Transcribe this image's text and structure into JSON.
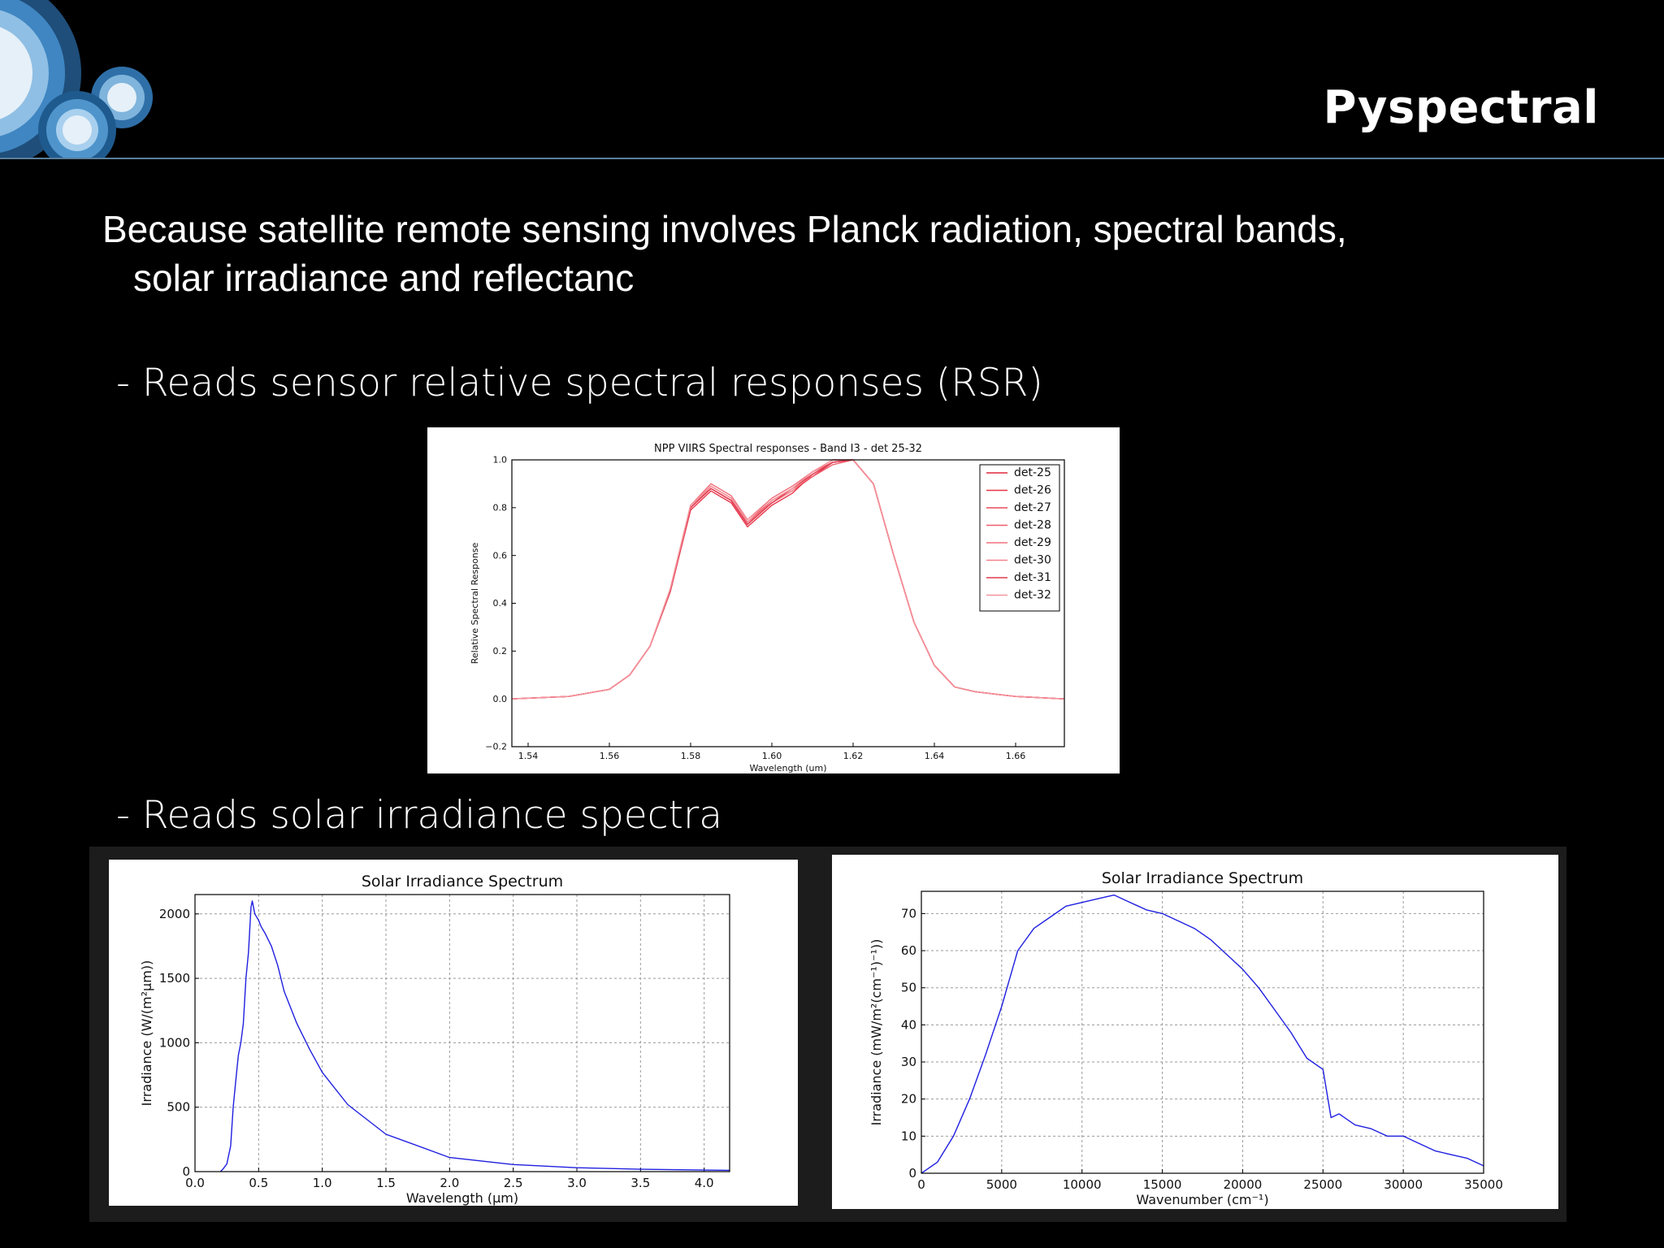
{
  "slide": {
    "title": "Pyspectral",
    "intro_line1": "Because satellite remote sensing involves Planck radiation, spectral bands,",
    "intro_line2": "solar irradiance and reflectanc",
    "bullets": [
      "- Reads sensor relative spectral responses (RSR)",
      "- Reads solar irradiance spectra"
    ],
    "decoration": "concentric-circles-logo",
    "colors": {
      "background": "#000000",
      "text": "#ffffff",
      "divider": "#5a7f9c",
      "circles": "#3f86c2"
    }
  },
  "chart_data": [
    {
      "type": "line",
      "title": "NPP VIIRS Spectral responses - Band I3 - det 25-32",
      "xlabel": "Wavelength (um)",
      "ylabel": "Relative Spectral Response",
      "xlim": [
        1.536,
        1.672
      ],
      "ylim": [
        -0.2,
        1.0
      ],
      "xticks": [
        "1.54",
        "1.56",
        "1.58",
        "1.60",
        "1.62",
        "1.64",
        "1.66"
      ],
      "yticks": [
        "−0.2",
        "0.0",
        "0.2",
        "0.4",
        "0.6",
        "0.8",
        "1.0"
      ],
      "grid": false,
      "legend": "top-right",
      "x": [
        1.536,
        1.55,
        1.56,
        1.565,
        1.57,
        1.575,
        1.58,
        1.585,
        1.59,
        1.594,
        1.6,
        1.605,
        1.61,
        1.615,
        1.62,
        1.625,
        1.63,
        1.635,
        1.64,
        1.645,
        1.65,
        1.655,
        1.66,
        1.672
      ],
      "series": [
        {
          "name": "det-25",
          "color": "#e0263c",
          "values": [
            0.0,
            0.01,
            0.04,
            0.1,
            0.22,
            0.45,
            0.8,
            0.88,
            0.83,
            0.73,
            0.82,
            0.87,
            0.93,
            0.99,
            1.0,
            0.9,
            0.6,
            0.32,
            0.14,
            0.05,
            0.03,
            0.02,
            0.01,
            0.0
          ]
        },
        {
          "name": "det-26",
          "color": "#e83447",
          "values": [
            0.0,
            0.01,
            0.04,
            0.1,
            0.22,
            0.45,
            0.79,
            0.87,
            0.82,
            0.72,
            0.81,
            0.86,
            0.94,
            0.99,
            1.0,
            0.9,
            0.6,
            0.32,
            0.14,
            0.05,
            0.03,
            0.02,
            0.01,
            0.0
          ]
        },
        {
          "name": "det-27",
          "color": "#ea4a5a",
          "values": [
            0.0,
            0.01,
            0.04,
            0.1,
            0.22,
            0.46,
            0.81,
            0.89,
            0.84,
            0.74,
            0.83,
            0.88,
            0.95,
            1.0,
            1.0,
            0.9,
            0.6,
            0.32,
            0.14,
            0.05,
            0.03,
            0.02,
            0.01,
            0.0
          ]
        },
        {
          "name": "det-28",
          "color": "#ee5e6c",
          "values": [
            0.0,
            0.01,
            0.04,
            0.1,
            0.22,
            0.45,
            0.8,
            0.88,
            0.83,
            0.73,
            0.83,
            0.88,
            0.93,
            0.98,
            1.0,
            0.9,
            0.6,
            0.32,
            0.14,
            0.05,
            0.03,
            0.02,
            0.01,
            0.0
          ]
        },
        {
          "name": "det-29",
          "color": "#f0707c",
          "values": [
            0.0,
            0.01,
            0.04,
            0.1,
            0.22,
            0.46,
            0.81,
            0.9,
            0.85,
            0.75,
            0.84,
            0.89,
            0.95,
            0.99,
            1.0,
            0.9,
            0.6,
            0.32,
            0.14,
            0.05,
            0.03,
            0.02,
            0.01,
            0.0
          ]
        },
        {
          "name": "det-30",
          "color": "#f2828c",
          "values": [
            0.0,
            0.01,
            0.04,
            0.1,
            0.22,
            0.45,
            0.8,
            0.89,
            0.84,
            0.74,
            0.82,
            0.87,
            0.94,
            0.99,
            1.0,
            0.9,
            0.6,
            0.32,
            0.14,
            0.05,
            0.03,
            0.02,
            0.01,
            0.0
          ]
        },
        {
          "name": "det-31",
          "color": "#e03a50",
          "values": [
            0.0,
            0.01,
            0.04,
            0.1,
            0.22,
            0.45,
            0.8,
            0.88,
            0.83,
            0.73,
            0.82,
            0.88,
            0.94,
            0.99,
            1.0,
            0.9,
            0.6,
            0.32,
            0.14,
            0.05,
            0.03,
            0.02,
            0.01,
            0.0
          ]
        },
        {
          "name": "det-32",
          "color": "#f4949c",
          "values": [
            0.0,
            0.01,
            0.04,
            0.1,
            0.22,
            0.46,
            0.81,
            0.89,
            0.84,
            0.75,
            0.83,
            0.88,
            0.95,
            1.0,
            1.0,
            0.9,
            0.6,
            0.32,
            0.14,
            0.05,
            0.03,
            0.02,
            0.01,
            0.0
          ]
        }
      ]
    },
    {
      "type": "line",
      "title": "Solar Irradiance Spectrum",
      "xlabel": "Wavelength (μm)",
      "ylabel": "Irradiance (W/(m²μm))",
      "xlim": [
        0.0,
        4.2
      ],
      "ylim": [
        0,
        2150
      ],
      "xticks": [
        "0.0",
        "0.5",
        "1.0",
        "1.5",
        "2.0",
        "2.5",
        "3.0",
        "3.5",
        "4.0"
      ],
      "yticks": [
        "0",
        "500",
        "1000",
        "1500",
        "2000"
      ],
      "grid": true,
      "color": "#1f1fe0",
      "x": [
        0.2,
        0.22,
        0.25,
        0.28,
        0.3,
        0.32,
        0.34,
        0.36,
        0.38,
        0.4,
        0.42,
        0.44,
        0.45,
        0.47,
        0.5,
        0.52,
        0.55,
        0.6,
        0.65,
        0.7,
        0.8,
        0.9,
        1.0,
        1.2,
        1.5,
        2.0,
        2.5,
        3.0,
        3.5,
        4.0,
        4.2
      ],
      "values": [
        0,
        20,
        60,
        200,
        500,
        700,
        900,
        1000,
        1150,
        1500,
        1700,
        2050,
        2100,
        2000,
        1950,
        1900,
        1850,
        1750,
        1600,
        1400,
        1150,
        950,
        770,
        520,
        290,
        110,
        55,
        30,
        18,
        12,
        10
      ]
    },
    {
      "type": "line",
      "title": "Solar Irradiance Spectrum",
      "xlabel": "Wavenumber (cm⁻¹)",
      "ylabel": "Irradiance (mW/m²(cm⁻¹)⁻¹))",
      "xlim": [
        0,
        35000
      ],
      "ylim": [
        0,
        76
      ],
      "xticks": [
        "0",
        "5000",
        "10000",
        "15000",
        "20000",
        "25000",
        "30000",
        "35000"
      ],
      "yticks": [
        "0",
        "10",
        "20",
        "30",
        "40",
        "50",
        "60",
        "70"
      ],
      "grid": true,
      "color": "#1f1fe0",
      "x": [
        0,
        1000,
        2000,
        3000,
        4000,
        5000,
        6000,
        7000,
        8000,
        9000,
        10000,
        11000,
        12000,
        13000,
        14000,
        15000,
        16000,
        17000,
        18000,
        19000,
        20000,
        21000,
        22000,
        23000,
        24000,
        25000,
        25500,
        26000,
        27000,
        28000,
        29000,
        30000,
        31000,
        32000,
        33000,
        34000,
        35000
      ],
      "values": [
        0,
        3,
        10,
        20,
        32,
        45,
        60,
        66,
        69,
        72,
        73,
        74,
        75,
        73,
        71,
        70,
        68,
        66,
        63,
        59,
        55,
        50,
        44,
        38,
        31,
        28,
        15,
        16,
        13,
        12,
        10,
        10,
        8,
        6,
        5,
        4,
        2
      ]
    }
  ]
}
